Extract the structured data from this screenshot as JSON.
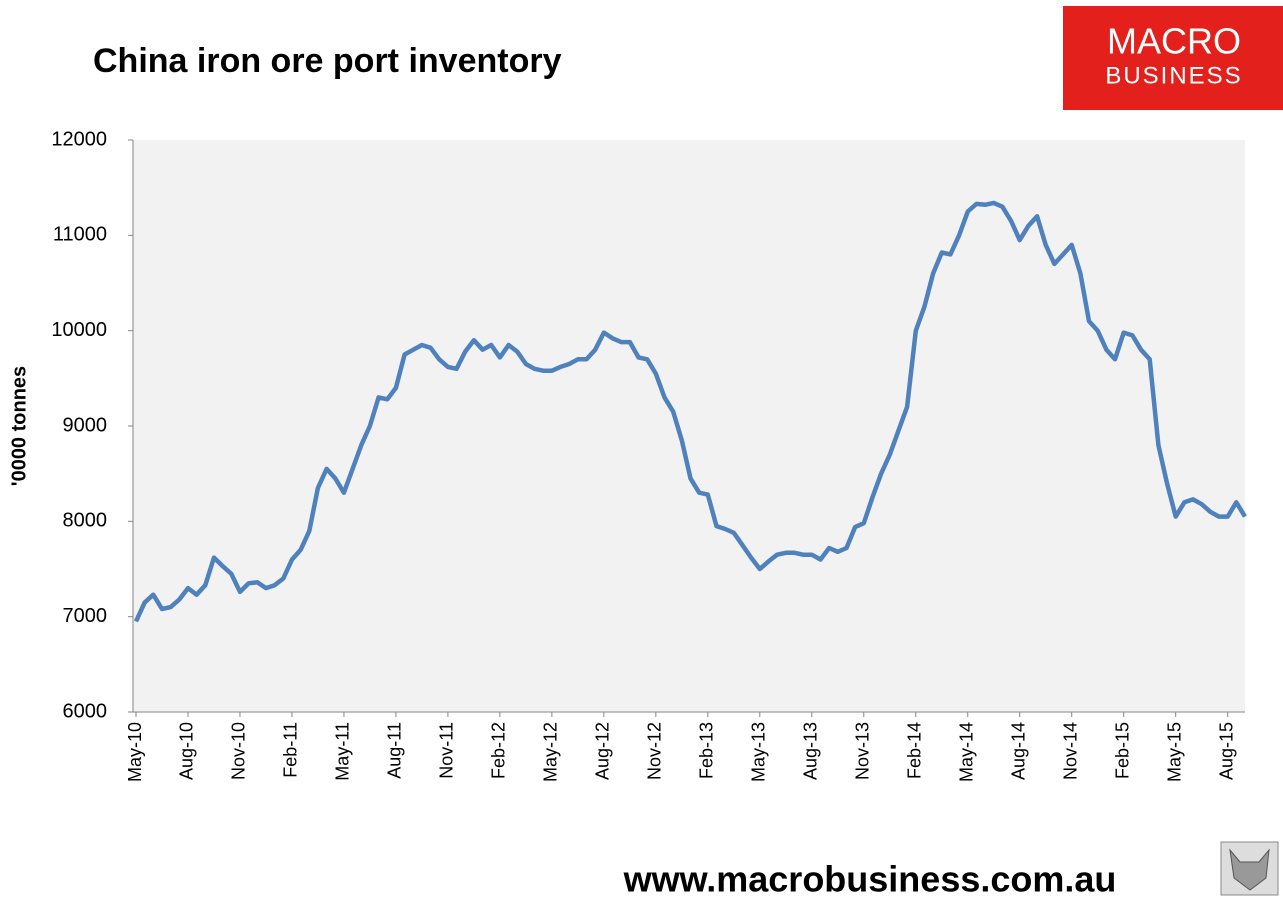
{
  "chart_data": {
    "type": "line",
    "title": "China iron ore port inventory",
    "y_label": "'0000 tonnes",
    "logo": {
      "line1": "MACRO",
      "line2": "BUSINESS"
    },
    "footer": "www.macrobusiness.com.au",
    "categories": [
      "May-10",
      null,
      null,
      null,
      null,
      null,
      "Aug-10",
      null,
      null,
      null,
      null,
      null,
      "Nov-10",
      null,
      null,
      null,
      null,
      null,
      "Feb-11",
      null,
      null,
      null,
      null,
      null,
      "May-11",
      null,
      null,
      null,
      null,
      null,
      "Aug-11",
      null,
      null,
      null,
      null,
      null,
      "Nov-11",
      null,
      null,
      null,
      null,
      null,
      "Feb-12",
      null,
      null,
      null,
      null,
      null,
      "May-12",
      null,
      null,
      null,
      null,
      null,
      "Aug-12",
      null,
      null,
      null,
      null,
      null,
      "Nov-12",
      null,
      null,
      null,
      null,
      null,
      "Feb-13",
      null,
      null,
      null,
      null,
      null,
      "May-13",
      null,
      null,
      null,
      null,
      null,
      "Aug-13",
      null,
      null,
      null,
      null,
      null,
      "Nov-13",
      null,
      null,
      null,
      null,
      null,
      "Feb-14",
      null,
      null,
      null,
      null,
      null,
      "May-14",
      null,
      null,
      null,
      null,
      null,
      "Aug-14",
      null,
      null,
      null,
      null,
      null,
      "Nov-14",
      null,
      null,
      null,
      null,
      null,
      "Feb-15",
      null,
      null,
      null,
      null,
      null,
      "May-15",
      null,
      null,
      null,
      null,
      null,
      "Aug-15",
      null,
      null
    ],
    "series": [
      {
        "name": "China iron ore port inventory",
        "color": "#4f81bd",
        "values": [
          6950,
          7150,
          7230,
          7080,
          7100,
          7180,
          7300,
          7230,
          7330,
          7620,
          7530,
          7450,
          7260,
          7350,
          7360,
          7300,
          7330,
          7400,
          7600,
          7700,
          7900,
          8350,
          8550,
          8450,
          8300,
          8550,
          8800,
          9000,
          9300,
          9280,
          9400,
          9750,
          9800,
          9850,
          9820,
          9700,
          9620,
          9600,
          9780,
          9900,
          9800,
          9850,
          9720,
          9850,
          9780,
          9650,
          9600,
          9580,
          9580,
          9620,
          9650,
          9700,
          9700,
          9800,
          9980,
          9920,
          9880,
          9880,
          9720,
          9700,
          9550,
          9300,
          9150,
          8850,
          8450,
          8300,
          8280,
          7950,
          7920,
          7880,
          7750,
          7620,
          7500,
          7580,
          7650,
          7670,
          7670,
          7650,
          7650,
          7600,
          7720,
          7680,
          7720,
          7940,
          7980,
          8250,
          8500,
          8700,
          8950,
          9200,
          10000,
          10250,
          10600,
          10820,
          10800,
          11000,
          11250,
          11330,
          11320,
          11340,
          11300,
          11150,
          10950,
          11100,
          11200,
          10900,
          10700,
          10800,
          10900,
          10600,
          10100,
          10000,
          9800,
          9700,
          9980,
          9950,
          9800,
          9700,
          8800,
          8400,
          8050,
          8200,
          8230,
          8180,
          8100,
          8050,
          8050,
          8200,
          8050
        ]
      }
    ],
    "ylim": [
      6000,
      12000
    ],
    "yticks": [
      6000,
      7000,
      8000,
      9000,
      10000,
      11000,
      12000
    ],
    "grid": false
  }
}
